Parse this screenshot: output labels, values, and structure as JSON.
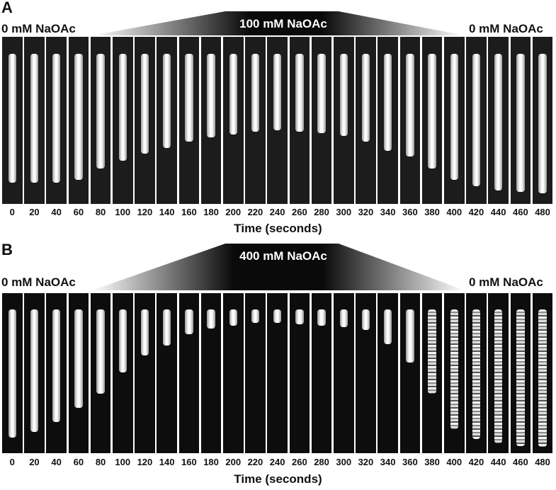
{
  "panel_a": {
    "letter": "A",
    "left_label": "0 mM NaOAc",
    "center_label": "100 mM NaOAc",
    "right_label": "0 mM NaOAc",
    "times": [
      "0",
      "20",
      "40",
      "60",
      "80",
      "100",
      "120",
      "140",
      "160",
      "180",
      "200",
      "220",
      "240",
      "260",
      "280",
      "300",
      "320",
      "340",
      "360",
      "380",
      "400",
      "420",
      "440",
      "460",
      "480"
    ],
    "cell_fraction": [
      0.88,
      0.88,
      0.88,
      0.86,
      0.78,
      0.73,
      0.68,
      0.64,
      0.6,
      0.57,
      0.55,
      0.53,
      0.52,
      0.53,
      0.54,
      0.56,
      0.6,
      0.66,
      0.7,
      0.78,
      0.86,
      0.9,
      0.93,
      0.94,
      0.95
    ],
    "axis_title": "Time (seconds)"
  },
  "panel_b": {
    "letter": "B",
    "left_label": "0 mM NaOAc",
    "center_label": "400 mM NaOAc",
    "right_label": "0 mM NaOAc",
    "times": [
      "0",
      "20",
      "40",
      "60",
      "80",
      "100",
      "120",
      "140",
      "160",
      "180",
      "200",
      "220",
      "240",
      "260",
      "280",
      "300",
      "320",
      "340",
      "360",
      "380",
      "400",
      "420",
      "440",
      "460",
      "480"
    ],
    "cell_fraction": [
      0.91,
      0.87,
      0.8,
      0.7,
      0.6,
      0.45,
      0.33,
      0.26,
      0.18,
      0.14,
      0.12,
      0.1,
      0.1,
      0.11,
      0.12,
      0.13,
      0.15,
      0.25,
      0.38,
      0.6,
      0.85,
      0.92,
      0.95,
      0.97,
      0.98
    ],
    "axis_title": "Time (seconds)"
  },
  "colors": {
    "cell": "#e6e6e6",
    "background_a": "#1c1c1c",
    "background_b": "#0d0d0d",
    "wedge_dark": "#0a0a0a",
    "wedge_light": "#ffffff"
  }
}
